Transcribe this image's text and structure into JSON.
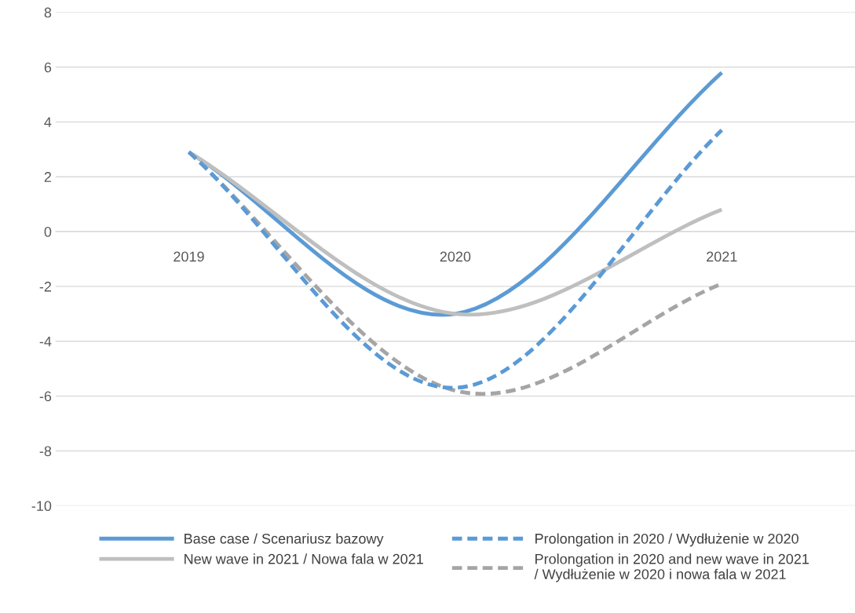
{
  "chart_data": {
    "type": "line",
    "categories": [
      "2019",
      "2020",
      "2021"
    ],
    "series": [
      {
        "name": "Base case / Scenariusz bazowy",
        "color": "#5b9bd5",
        "line_style": "solid",
        "values": [
          2.9,
          -3.0,
          5.8
        ]
      },
      {
        "name": "Prolongation in 2020 / Wydłużenie w 2020",
        "color": "#5a9ad6",
        "line_style": "dashed",
        "values": [
          2.9,
          -5.7,
          3.7
        ]
      },
      {
        "name": "New wave in 2021 / Nowa fala w 2021",
        "color": "#bfbfbf",
        "line_style": "solid",
        "values": [
          2.9,
          -3.0,
          0.8
        ]
      },
      {
        "name": "Prolongation in 2020 and new wave in 2021\n/ Wydłużenie w 2020 i nowa fala w 2021",
        "color": "#a5a5a5",
        "line_style": "dashed",
        "values": [
          2.9,
          -5.8,
          -1.9
        ]
      }
    ],
    "ylim": [
      -10,
      8
    ],
    "yticks": [
      -10,
      -8,
      -6,
      -4,
      -2,
      0,
      2,
      4,
      6,
      8
    ],
    "grid": "y",
    "legend": "bottom",
    "marker": "none"
  }
}
